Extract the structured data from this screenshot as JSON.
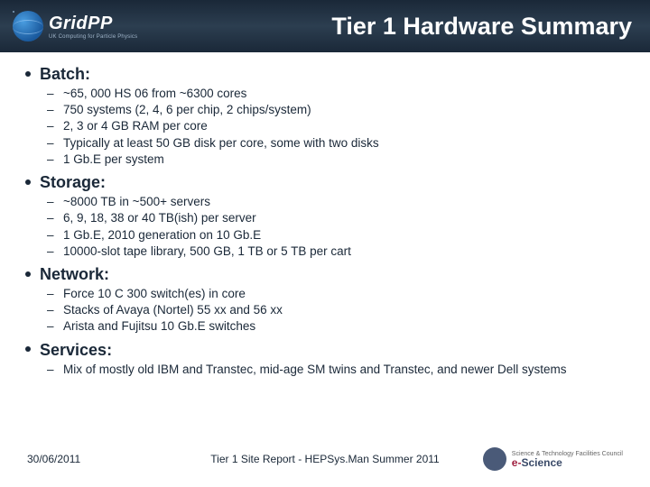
{
  "header": {
    "logo_main": "GridPP",
    "logo_sub": "UK Computing for Particle Physics",
    "title": "Tier 1 Hardware Summary"
  },
  "sections": [
    {
      "heading": "Batch:",
      "items": [
        "~65, 000 HS 06 from ~6300 cores",
        "750 systems (2, 4, 6 per chip, 2 chips/system)",
        "2, 3 or 4 GB RAM per core",
        "Typically at least 50 GB disk per core, some with two disks",
        "1 Gb.E per system"
      ]
    },
    {
      "heading": "Storage:",
      "items": [
        "~8000 TB in ~500+ servers",
        "6, 9, 18, 38 or 40 TB(ish) per server",
        "1 Gb.E, 2010 generation on 10 Gb.E",
        "10000-slot tape library, 500 GB, 1 TB or 5 TB per cart"
      ]
    },
    {
      "heading": "Network:",
      "items": [
        "Force 10 C 300 switch(es) in core",
        "Stacks of Avaya (Nortel) 55 xx and 56 xx",
        "Arista and Fujitsu 10 Gb.E switches"
      ]
    },
    {
      "heading": "Services:",
      "items": [
        "Mix of mostly old IBM and Transtec, mid-age SM twins and Transtec, and newer Dell systems"
      ]
    }
  ],
  "footer": {
    "date": "30/06/2011",
    "center": "Tier 1 Site Report - HEPSys.Man Summer 2011",
    "esci_top": "Science & Technology Facilities Council",
    "esci_e": "e-",
    "esci_word": "Science"
  },
  "colors": {
    "header_bg": "#1a2838",
    "text": "#1a2838",
    "white": "#ffffff"
  }
}
